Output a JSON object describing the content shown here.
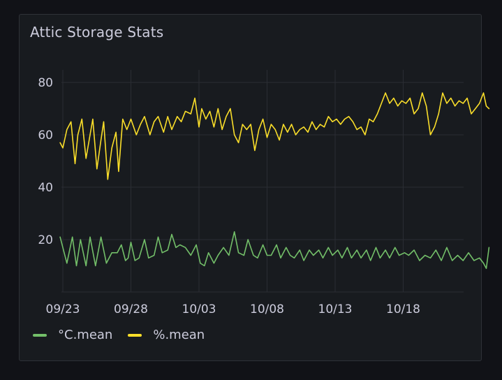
{
  "panel": {
    "title": "Attic Storage Stats"
  },
  "colors": {
    "background": "#181b1f",
    "grid": "#2a2d33",
    "text": "#ccccdc",
    "temp_series": "#73bf69",
    "humidity_series": "#fade2a"
  },
  "chart_data": {
    "type": "line",
    "title": "Attic Storage Stats",
    "xlabel": "",
    "ylabel": "",
    "x_range": [
      0,
      31.3
    ],
    "x_unit": "days since 09/23",
    "ylim": [
      0,
      85
    ],
    "y_ticks": [
      20,
      40,
      60,
      80
    ],
    "x_ticks": [
      {
        "label": "09/23",
        "x": 0
      },
      {
        "label": "09/28",
        "x": 5
      },
      {
        "label": "10/03",
        "x": 10
      },
      {
        "label": "10/08",
        "x": 15
      },
      {
        "label": "10/13",
        "x": 20
      },
      {
        "label": "10/18",
        "x": 25
      }
    ],
    "grid": true,
    "legend_position": "bottom-left",
    "series": [
      {
        "name": "°C.mean",
        "color": "#73bf69",
        "x": [
          -0.2,
          0.3,
          0.7,
          1.0,
          1.3,
          1.7,
          2.0,
          2.4,
          2.8,
          3.2,
          3.6,
          4.0,
          4.3,
          4.6,
          4.8,
          5.0,
          5.3,
          5.6,
          6.0,
          6.3,
          6.7,
          7.0,
          7.3,
          7.7,
          8.0,
          8.3,
          8.6,
          9.0,
          9.4,
          9.8,
          10.1,
          10.4,
          10.7,
          11.1,
          11.4,
          11.8,
          12.2,
          12.6,
          12.9,
          13.3,
          13.6,
          14.0,
          14.3,
          14.7,
          15.0,
          15.3,
          15.7,
          16.0,
          16.4,
          16.7,
          17.0,
          17.4,
          17.7,
          18.1,
          18.4,
          18.8,
          19.1,
          19.5,
          19.8,
          20.2,
          20.5,
          20.9,
          21.2,
          21.6,
          21.9,
          22.3,
          22.6,
          23.0,
          23.3,
          23.7,
          24.0,
          24.4,
          24.7,
          25.1,
          25.4,
          25.8,
          26.2,
          26.6,
          27.0,
          27.4,
          27.8,
          28.2,
          28.6,
          29.0,
          29.4,
          29.8,
          30.2,
          30.6,
          30.9,
          31.1,
          31.3
        ],
        "values": [
          21,
          11,
          21,
          10,
          20,
          10,
          21,
          10,
          21,
          11,
          15,
          15,
          18,
          12,
          13,
          19,
          12,
          13,
          20,
          13,
          14,
          21,
          15,
          16,
          22,
          17,
          18,
          17,
          14,
          18,
          11,
          10,
          15,
          11,
          14,
          17,
          14,
          23,
          15,
          14,
          20,
          14,
          13,
          18,
          14,
          14,
          18,
          13,
          17,
          14,
          13,
          16,
          12,
          16,
          14,
          16,
          13,
          17,
          14,
          16,
          13,
          17,
          13,
          16,
          13,
          16,
          12,
          17,
          13,
          16,
          13,
          17,
          14,
          15,
          14,
          16,
          12,
          14,
          13,
          16,
          12,
          17,
          12,
          14,
          12,
          15,
          12,
          13,
          11,
          9,
          17
        ]
      },
      {
        "name": "%.mean",
        "color": "#fade2a",
        "x": [
          -0.2,
          0.0,
          0.3,
          0.6,
          0.9,
          1.1,
          1.4,
          1.7,
          2.0,
          2.2,
          2.5,
          2.8,
          3.0,
          3.3,
          3.6,
          3.9,
          4.1,
          4.4,
          4.7,
          5.0,
          5.4,
          5.7,
          6.0,
          6.4,
          6.7,
          7.0,
          7.4,
          7.7,
          8.0,
          8.4,
          8.7,
          9.0,
          9.4,
          9.7,
          10.0,
          10.2,
          10.5,
          10.8,
          11.1,
          11.4,
          11.7,
          12.0,
          12.3,
          12.6,
          12.9,
          13.2,
          13.5,
          13.8,
          14.1,
          14.4,
          14.7,
          15.0,
          15.3,
          15.6,
          15.9,
          16.2,
          16.5,
          16.8,
          17.1,
          17.4,
          17.7,
          18.0,
          18.3,
          18.6,
          18.9,
          19.2,
          19.5,
          19.8,
          20.1,
          20.4,
          20.7,
          21.0,
          21.3,
          21.6,
          21.9,
          22.2,
          22.5,
          22.8,
          23.1,
          23.4,
          23.7,
          24.0,
          24.3,
          24.6,
          24.9,
          25.2,
          25.5,
          25.8,
          26.1,
          26.4,
          26.7,
          27.0,
          27.3,
          27.6,
          27.9,
          28.2,
          28.5,
          28.8,
          29.1,
          29.4,
          29.7,
          30.0,
          30.3,
          30.6,
          30.9,
          31.1,
          31.3
        ],
        "values": [
          57,
          55,
          62,
          65,
          49,
          60,
          66,
          51,
          60,
          66,
          47,
          58,
          65,
          43,
          55,
          61,
          46,
          66,
          62,
          66,
          60,
          64,
          67,
          60,
          65,
          67,
          61,
          67,
          62,
          67,
          65,
          69,
          68,
          74,
          63,
          70,
          66,
          69,
          63,
          70,
          62,
          67,
          70,
          60,
          57,
          64,
          62,
          64,
          54,
          62,
          66,
          59,
          64,
          62,
          58,
          64,
          61,
          64,
          60,
          62,
          63,
          61,
          65,
          62,
          64,
          63,
          67,
          65,
          66,
          64,
          66,
          67,
          65,
          62,
          63,
          60,
          66,
          65,
          68,
          72,
          76,
          72,
          74,
          71,
          73,
          72,
          74,
          68,
          70,
          76,
          71,
          60,
          63,
          68,
          76,
          72,
          74,
          71,
          73,
          72,
          74,
          68,
          70,
          72,
          76,
          71,
          70
        ]
      }
    ]
  }
}
